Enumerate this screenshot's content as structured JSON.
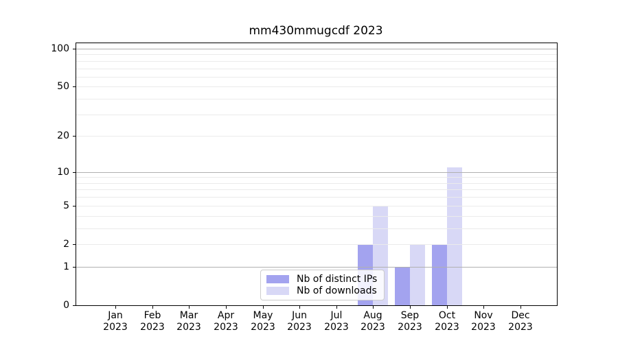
{
  "chart_data": {
    "type": "bar",
    "title": "mm430mmugcdf 2023",
    "categories": [
      "Jan 2023",
      "Feb 2023",
      "Mar 2023",
      "Apr 2023",
      "May 2023",
      "Jun 2023",
      "Jul 2023",
      "Aug 2023",
      "Sep 2023",
      "Oct 2023",
      "Nov 2023",
      "Dec 2023"
    ],
    "series": [
      {
        "name": "Nb of distinct IPs",
        "color": "#a3a3ef",
        "values": [
          0,
          0,
          0,
          0,
          0,
          0,
          0,
          2,
          1,
          2,
          0,
          0
        ]
      },
      {
        "name": "Nb of downloads",
        "color": "#d8d8f6",
        "values": [
          0,
          0,
          0,
          0,
          0,
          0,
          0,
          5,
          2,
          11,
          0,
          0
        ]
      }
    ],
    "yscale": "log1p",
    "ylim": [
      0,
      110
    ],
    "yticks": [
      0,
      1,
      2,
      5,
      10,
      20,
      50,
      100
    ],
    "major_gridlines": [
      1,
      10,
      100
    ],
    "minor_gridlines": [
      2,
      3,
      4,
      5,
      6,
      7,
      8,
      9,
      20,
      30,
      40,
      50,
      60,
      70,
      80,
      90
    ],
    "grid": "both",
    "legend_position": "lower center",
    "xlabel": "",
    "ylabel": "",
    "colors": {
      "major_grid": "#b0b0b0",
      "minor_grid": "#ebebeb",
      "spine": "#000000",
      "background": "#ffffff"
    }
  }
}
